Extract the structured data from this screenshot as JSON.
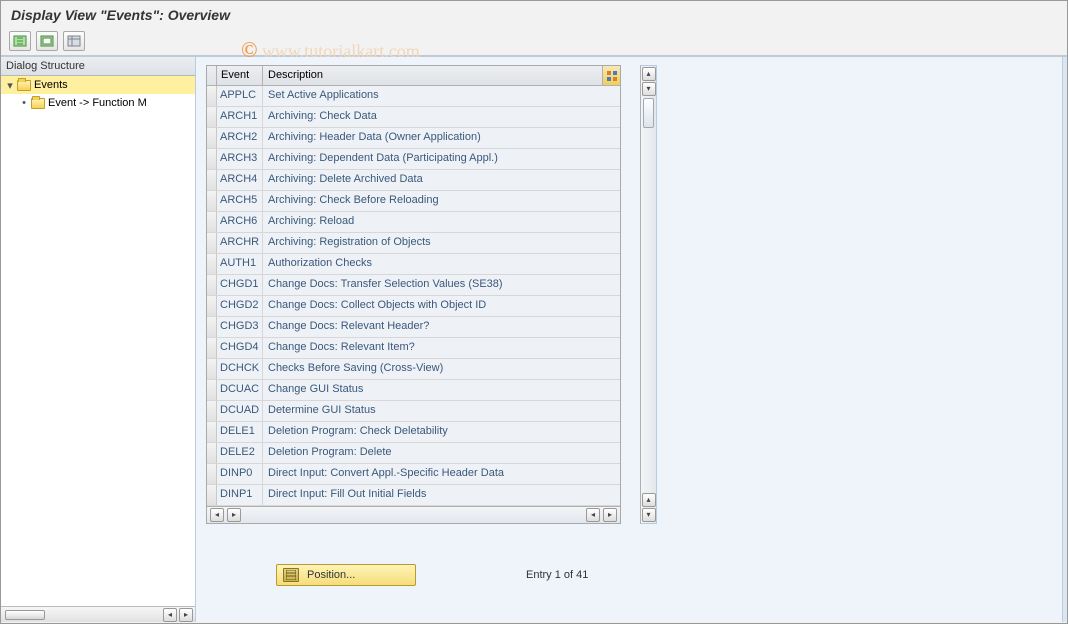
{
  "title": "Display View \"Events\": Overview",
  "watermark": "www.tutorialkart.com",
  "toolbar_icons": [
    "expand-all",
    "collapse-all",
    "table-settings"
  ],
  "tree": {
    "header": "Dialog Structure",
    "root": {
      "label": "Events",
      "expanded": true,
      "selected": true
    },
    "child": {
      "label": "Event -> Function M"
    }
  },
  "grid": {
    "col1_header": "Event",
    "col2_header": "Description",
    "rows": [
      {
        "event": "APPLC",
        "desc": "Set Active Applications"
      },
      {
        "event": "ARCH1",
        "desc": "Archiving: Check Data"
      },
      {
        "event": "ARCH2",
        "desc": "Archiving: Header Data (Owner Application)"
      },
      {
        "event": "ARCH3",
        "desc": "Archiving: Dependent Data (Participating Appl.)"
      },
      {
        "event": "ARCH4",
        "desc": "Archiving: Delete Archived Data"
      },
      {
        "event": "ARCH5",
        "desc": "Archiving: Check Before Reloading"
      },
      {
        "event": "ARCH6",
        "desc": "Archiving: Reload"
      },
      {
        "event": "ARCHR",
        "desc": "Archiving: Registration of Objects"
      },
      {
        "event": "AUTH1",
        "desc": "Authorization Checks"
      },
      {
        "event": "CHGD1",
        "desc": "Change Docs: Transfer Selection Values (SE38)"
      },
      {
        "event": "CHGD2",
        "desc": "Change Docs: Collect Objects with Object ID"
      },
      {
        "event": "CHGD3",
        "desc": "Change Docs: Relevant Header?"
      },
      {
        "event": "CHGD4",
        "desc": "Change Docs: Relevant Item?"
      },
      {
        "event": "DCHCK",
        "desc": "Checks Before Saving (Cross-View)"
      },
      {
        "event": "DCUAC",
        "desc": "Change GUI Status"
      },
      {
        "event": "DCUAD",
        "desc": "Determine GUI Status"
      },
      {
        "event": "DELE1",
        "desc": "Deletion Program: Check Deletability"
      },
      {
        "event": "DELE2",
        "desc": "Deletion Program: Delete"
      },
      {
        "event": "DINP0",
        "desc": "Direct Input: Convert Appl.-Specific Header Data"
      },
      {
        "event": "DINP1",
        "desc": "Direct Input: Fill Out Initial Fields"
      }
    ]
  },
  "position_button": "Position...",
  "entry_status": "Entry 1 of 41",
  "colors": {
    "app_bg": "#eef4fa",
    "cell_bg": "#eef2f7",
    "cell_text": "#3a587a",
    "selected_row": "#fef09f",
    "yellow_btn_top": "#fff4b8",
    "yellow_btn_bottom": "#f5dd7a"
  }
}
